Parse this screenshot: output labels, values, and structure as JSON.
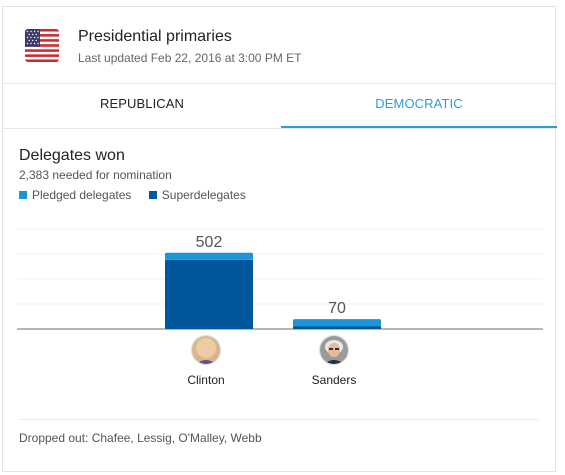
{
  "header": {
    "title": "Presidential primaries",
    "last_updated": "Last updated Feb 22, 2016 at 3:00 PM ET"
  },
  "tabs": [
    {
      "label": "REPUBLICAN",
      "selected": false
    },
    {
      "label": "DEMOCRATIC",
      "selected": true
    }
  ],
  "section": {
    "title": "Delegates won",
    "subtitle": "2,383 needed for nomination"
  },
  "legend": [
    {
      "label": "Pledged delegates",
      "color": "#1a96d8"
    },
    {
      "label": "Superdelegates",
      "color": "#01579b"
    }
  ],
  "chart_data": {
    "type": "bar",
    "categories": [
      "Clinton",
      "Sanders"
    ],
    "series": [
      {
        "name": "Pledged delegates",
        "values": [
          52,
          51
        ]
      },
      {
        "name": "Superdelegates",
        "values": [
          450,
          19
        ]
      }
    ],
    "totals": [
      "502",
      "70"
    ],
    "ylim": [
      0,
      650
    ],
    "grid": true
  },
  "candidates": [
    {
      "name": "Clinton"
    },
    {
      "name": "Sanders"
    }
  ],
  "footer": {
    "dropped_out": "Dropped out: Chafee, Lessig, O'Malley, Webb"
  },
  "colors": {
    "accent": "#2a9fd6",
    "pledged": "#1a96d8",
    "super": "#01579b"
  }
}
